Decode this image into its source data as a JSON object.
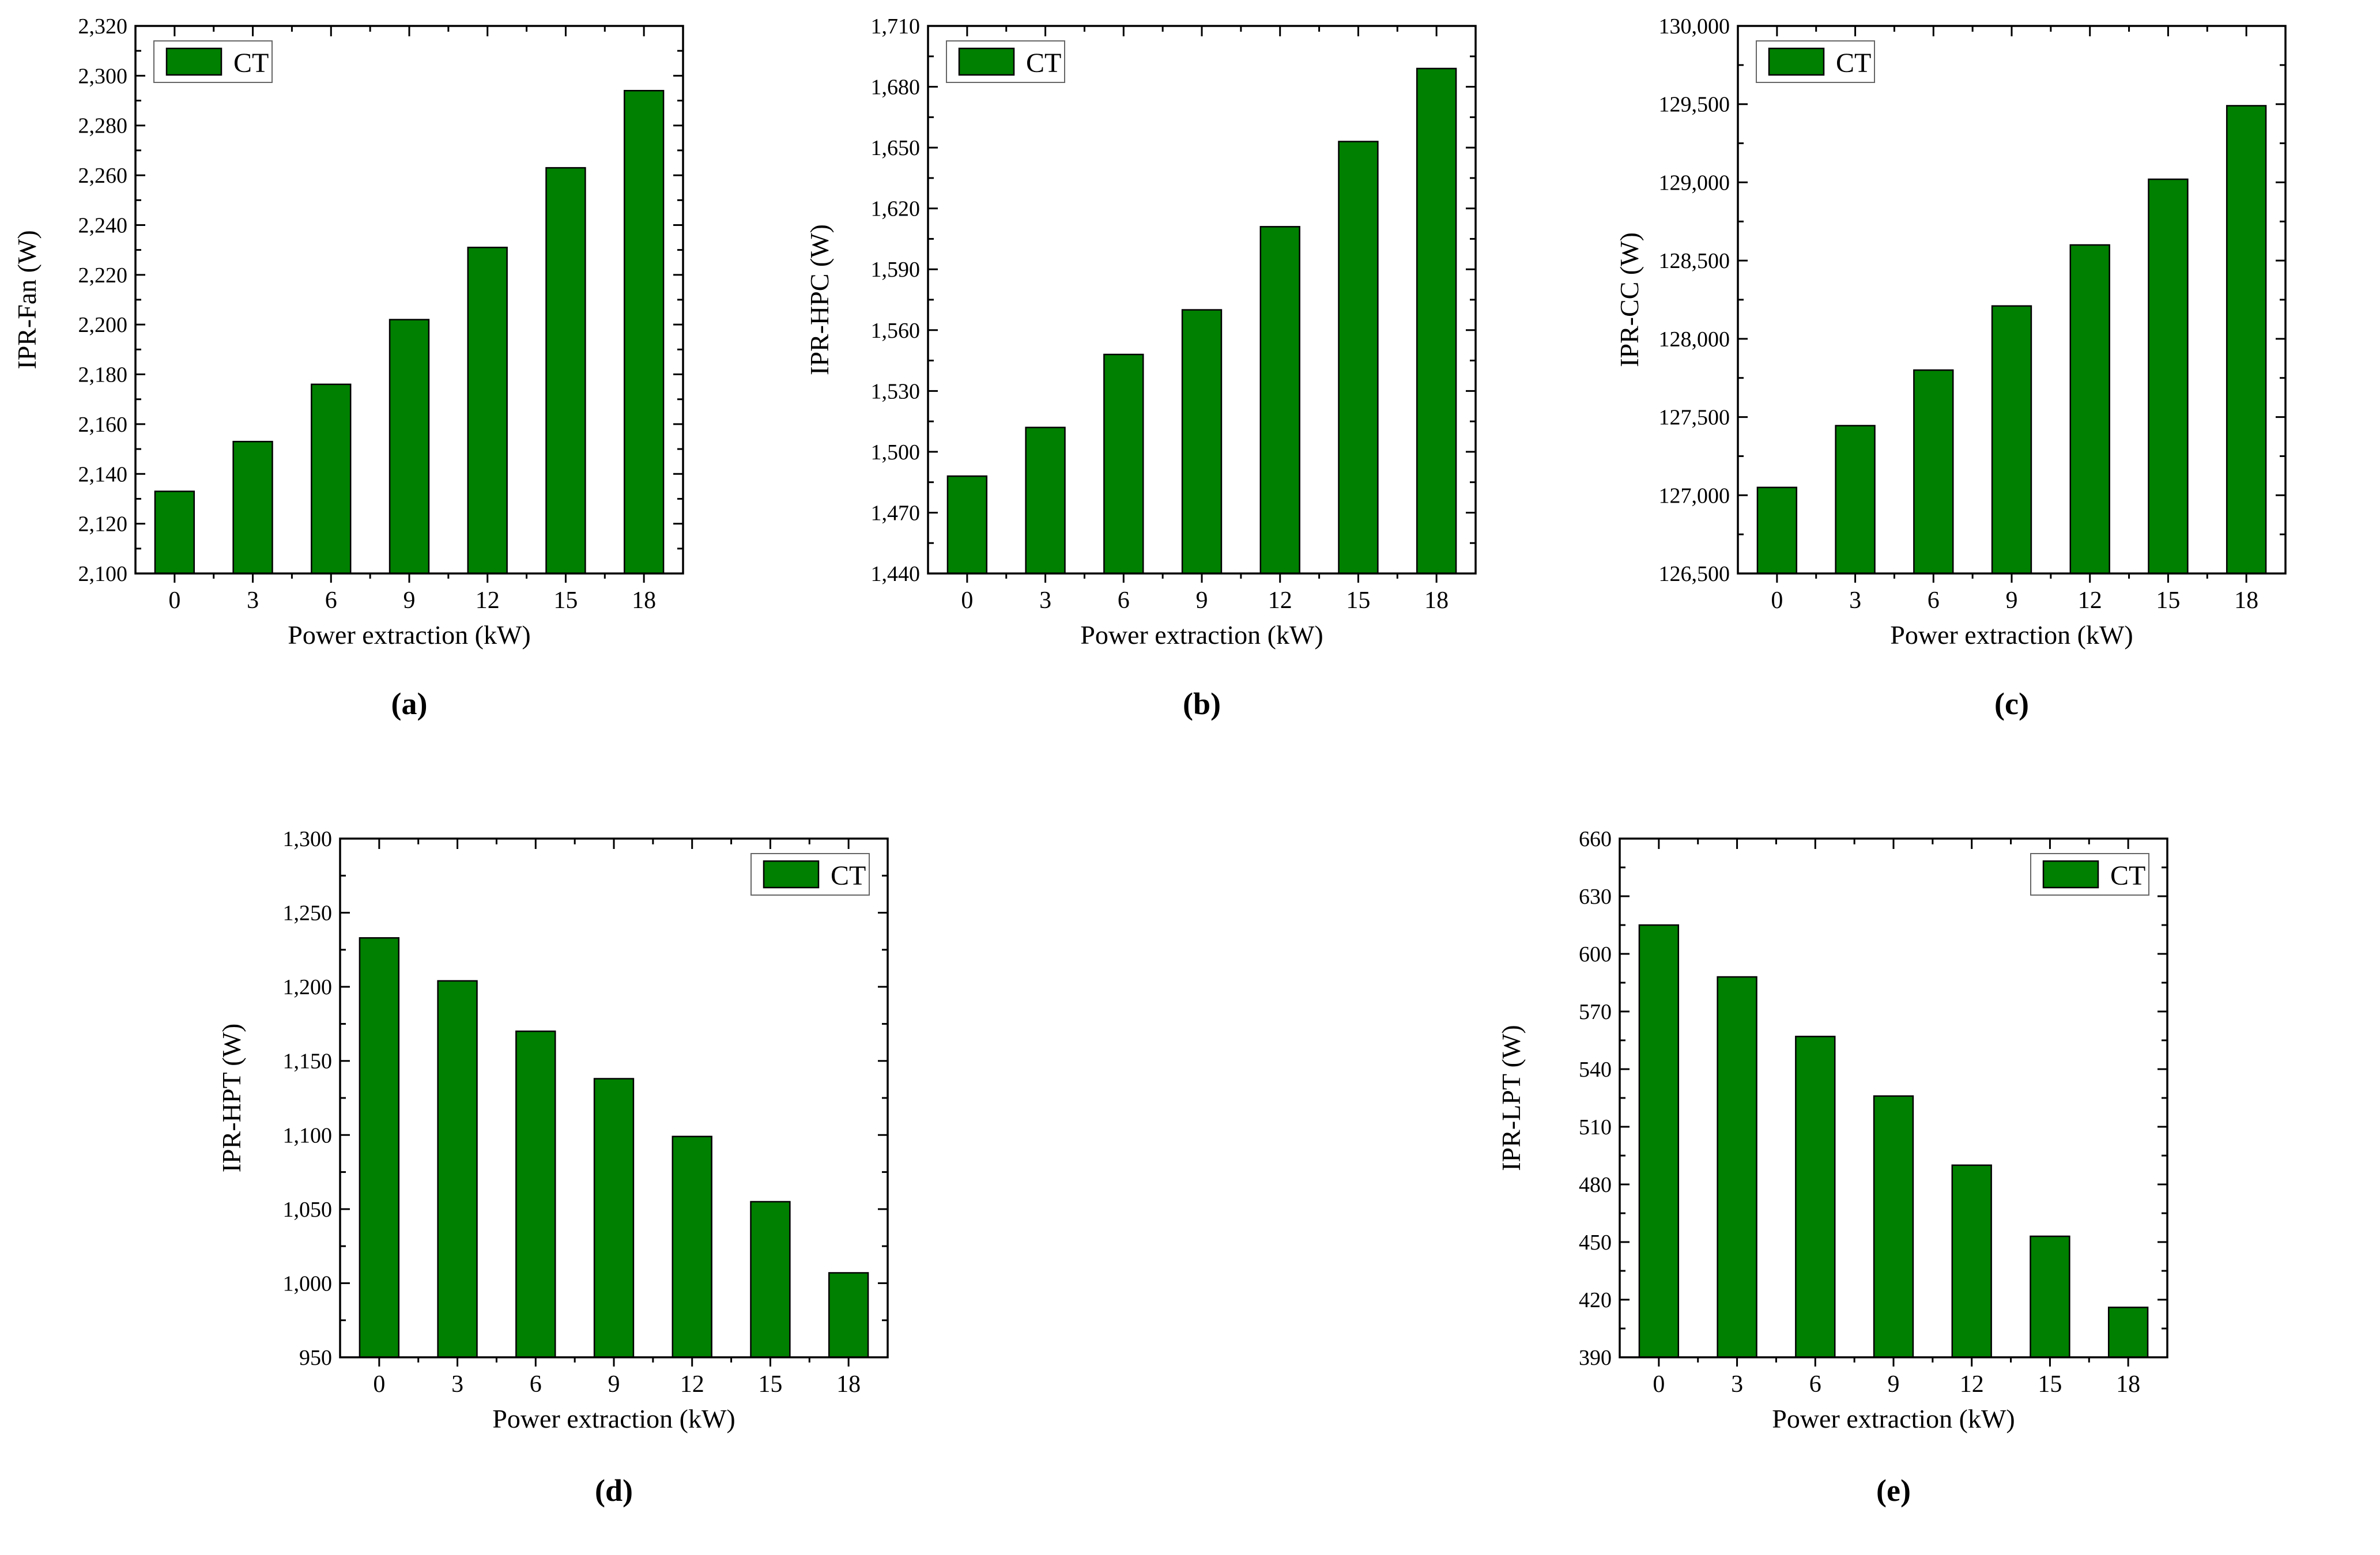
{
  "figure": {
    "background_color": "#ffffff",
    "bar_color": "#008000",
    "bar_border_color": "#000000",
    "axis_color": "#000000",
    "legend_label": "CT",
    "x_axis_label": "Power extraction (kW)",
    "panel_labels": [
      "(a)",
      "(b)",
      "(c)",
      "(d)",
      "(e)"
    ]
  },
  "chart_data": [
    {
      "type": "bar",
      "panel": "(a)",
      "title": "",
      "ylabel": "IPR-Fan (W)",
      "xlabel": "Power extraction (kW)",
      "legend": [
        "CT"
      ],
      "legend_position": "top-left",
      "grid": false,
      "categories": [
        0,
        3,
        6,
        9,
        12,
        15,
        18
      ],
      "values": [
        2133,
        2153,
        2176,
        2202,
        2231,
        2263,
        2294
      ],
      "ylim": [
        2100,
        2320
      ],
      "ytick_step": 20
    },
    {
      "type": "bar",
      "panel": "(b)",
      "title": "",
      "ylabel": "IPR-HPC (W)",
      "xlabel": "Power extraction (kW)",
      "legend": [
        "CT"
      ],
      "legend_position": "top-left",
      "grid": false,
      "categories": [
        0,
        3,
        6,
        9,
        12,
        15,
        18
      ],
      "values": [
        1488,
        1512,
        1548,
        1570,
        1611,
        1653,
        1689
      ],
      "ylim": [
        1440,
        1710
      ],
      "ytick_step": 30
    },
    {
      "type": "bar",
      "panel": "(c)",
      "title": "",
      "ylabel": "IPR-CC (W)",
      "xlabel": "Power extraction (kW)",
      "legend": [
        "CT"
      ],
      "legend_position": "top-left",
      "grid": false,
      "categories": [
        0,
        3,
        6,
        9,
        12,
        15,
        18
      ],
      "values": [
        127050,
        127445,
        127800,
        128210,
        128600,
        129020,
        129490
      ],
      "ylim": [
        126500,
        130000
      ],
      "ytick_step": 500
    },
    {
      "type": "bar",
      "panel": "(d)",
      "title": "",
      "ylabel": "IPR-HPT (W)",
      "xlabel": "Power extraction (kW)",
      "legend": [
        "CT"
      ],
      "legend_position": "top-right",
      "grid": false,
      "categories": [
        0,
        3,
        6,
        9,
        12,
        15,
        18
      ],
      "values": [
        1233,
        1204,
        1170,
        1138,
        1099,
        1055,
        1007
      ],
      "ylim": [
        950,
        1300
      ],
      "ytick_step": 50
    },
    {
      "type": "bar",
      "panel": "(e)",
      "title": "",
      "ylabel": "IPR-LPT (W)",
      "xlabel": "Power extraction (kW)",
      "legend": [
        "CT"
      ],
      "legend_position": "top-right",
      "grid": false,
      "categories": [
        0,
        3,
        6,
        9,
        12,
        15,
        18
      ],
      "values": [
        615,
        588,
        557,
        526,
        490,
        453,
        416
      ],
      "ylim": [
        390,
        660
      ],
      "ytick_step": 30
    }
  ]
}
